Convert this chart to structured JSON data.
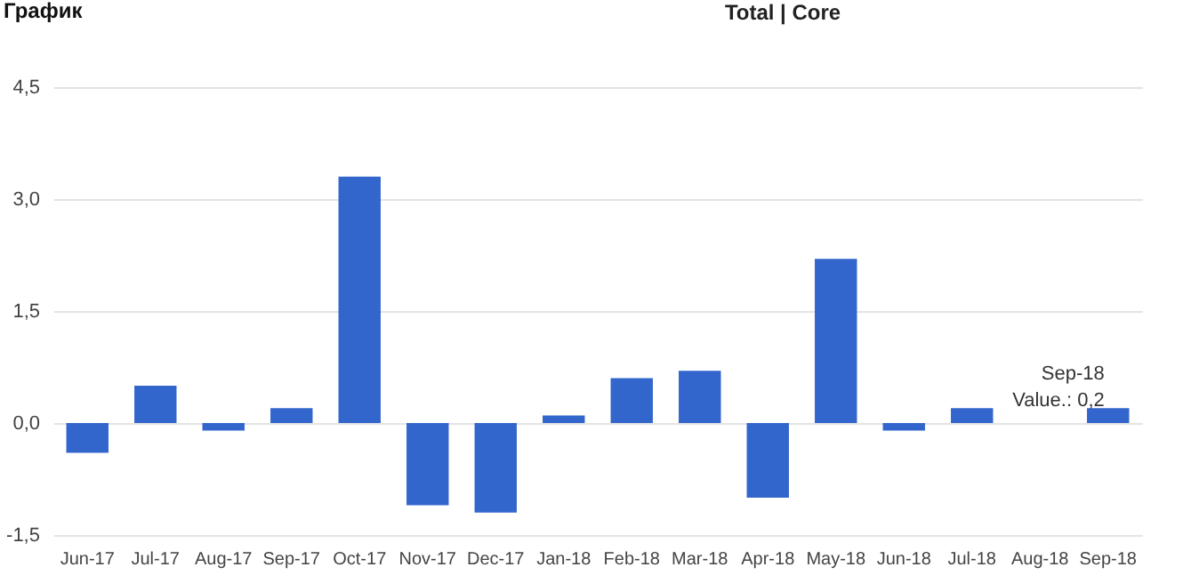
{
  "chart_data": {
    "type": "bar",
    "title": "График",
    "categories": [
      "Jun-17",
      "Jul-17",
      "Aug-17",
      "Sep-17",
      "Oct-17",
      "Nov-17",
      "Dec-17",
      "Jan-18",
      "Feb-18",
      "Mar-18",
      "Apr-18",
      "May-18",
      "Jun-18",
      "Jul-18",
      "Aug-18",
      "Sep-18"
    ],
    "values": [
      -0.4,
      0.5,
      -0.1,
      0.2,
      3.3,
      -1.1,
      -1.2,
      0.1,
      0.6,
      0.7,
      -1.0,
      2.2,
      -0.1,
      0.2,
      0,
      0.2
    ],
    "color": "#3366cc",
    "ylim": [
      -1.5,
      4.5
    ],
    "yticks": [
      {
        "value": -1.5,
        "label": "-1,5"
      },
      {
        "value": 0,
        "label": "0,0"
      },
      {
        "value": 1.5,
        "label": "1,5"
      },
      {
        "value": 3,
        "label": "3,0"
      },
      {
        "value": 4.5,
        "label": "4,5"
      }
    ],
    "grid": "y",
    "annotations": [
      "Total | Core",
      {
        "text": "Sep-18\nValue.: 0,2",
        "x": "Sep-18",
        "y": 0.2
      }
    ]
  }
}
